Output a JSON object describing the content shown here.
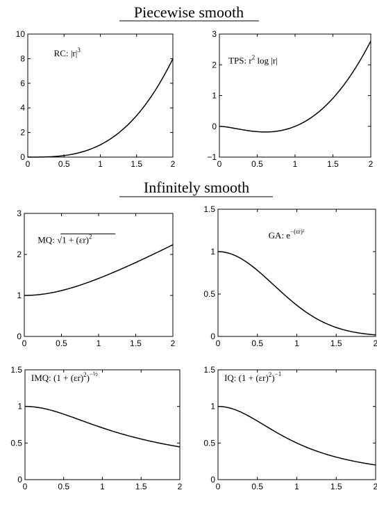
{
  "sections": [
    {
      "title": "Piecewise smooth"
    },
    {
      "title": "Infinitely smooth"
    }
  ],
  "chart_data": [
    {
      "id": "rc",
      "type": "line",
      "function": "abs(r)^3",
      "annotation": {
        "prefix": "RC: ",
        "formula": "|r|",
        "sup": "3"
      },
      "xlim": [
        0,
        2
      ],
      "ylim": [
        0,
        10
      ],
      "xticks": [
        "0",
        "0.5",
        "1",
        "1.5",
        "2"
      ],
      "yticks": [
        "0",
        "2",
        "4",
        "6",
        "8",
        "10"
      ],
      "x": [
        0,
        0.5,
        1,
        1.5,
        2
      ],
      "y": [
        0,
        0.125,
        1,
        3.375,
        8
      ]
    },
    {
      "id": "tps",
      "type": "line",
      "function": "r^2 log|r|",
      "annotation": {
        "prefix": "TPS: ",
        "formula": "r",
        "sup": "2",
        "suffix": " log |r|"
      },
      "xlim": [
        0,
        2
      ],
      "ylim": [
        -1,
        3
      ],
      "xticks": [
        "0",
        "0.5",
        "1",
        "1.5",
        "2"
      ],
      "yticks": [
        "−1",
        "0",
        "1",
        "2",
        "3"
      ],
      "x": [
        0,
        0.5,
        0.61,
        1,
        1.5,
        2
      ],
      "y": [
        0,
        -0.173,
        -0.184,
        0,
        0.912,
        2.773
      ]
    },
    {
      "id": "mq",
      "type": "line",
      "function": "sqrt(1+(eps r)^2)",
      "annotation": {
        "prefix": "MQ: ",
        "formula": "√",
        "radicand": "1 + (εr)",
        "sup": "2"
      },
      "xlim": [
        0,
        2
      ],
      "ylim": [
        0,
        3
      ],
      "xticks": [
        "0",
        "0.5",
        "1",
        "1.5",
        "2"
      ],
      "yticks": [
        "0",
        "1",
        "2",
        "3"
      ],
      "x": [
        0,
        0.5,
        1,
        1.5,
        2
      ],
      "y": [
        1,
        1.118,
        1.414,
        1.803,
        2.236
      ]
    },
    {
      "id": "ga",
      "type": "line",
      "function": "exp(-(eps r)^2)",
      "annotation": {
        "prefix": "GA: ",
        "formula": "e",
        "sup": "−(εr)²"
      },
      "xlim": [
        0,
        2
      ],
      "ylim": [
        0,
        1.5
      ],
      "xticks": [
        "0",
        "0.5",
        "1",
        "1.5",
        "2"
      ],
      "yticks": [
        "0",
        "0.5",
        "1",
        "1.5"
      ],
      "x": [
        0,
        0.5,
        1,
        1.5,
        2
      ],
      "y": [
        1,
        0.779,
        0.368,
        0.105,
        0.018
      ]
    },
    {
      "id": "imq",
      "type": "line",
      "function": "(1+(eps r)^2)^(-1/2)",
      "annotation": {
        "prefix": "IMQ: ",
        "formula": "(1 + (εr)",
        "sup1": "2",
        "close": ")",
        "sup": "−½"
      },
      "xlim": [
        0,
        2
      ],
      "ylim": [
        0,
        1.5
      ],
      "xticks": [
        "0",
        "0.5",
        "1",
        "1.5",
        "2"
      ],
      "yticks": [
        "0",
        "0.5",
        "1",
        "1.5"
      ],
      "x": [
        0,
        0.5,
        1,
        1.5,
        2
      ],
      "y": [
        1,
        0.894,
        0.707,
        0.555,
        0.447
      ]
    },
    {
      "id": "iq",
      "type": "line",
      "function": "(1+(eps r)^2)^(-1)",
      "annotation": {
        "prefix": "IQ: ",
        "formula": "(1 + (εr)",
        "sup1": "2",
        "close": ")",
        "sup": "−1"
      },
      "xlim": [
        0,
        2
      ],
      "ylim": [
        0,
        1.5
      ],
      "xticks": [
        "0",
        "0.5",
        "1",
        "1.5",
        "2"
      ],
      "yticks": [
        "0",
        "0.5",
        "1",
        "1.5"
      ],
      "x": [
        0,
        0.5,
        1,
        1.5,
        2
      ],
      "y": [
        1,
        0.8,
        0.5,
        0.308,
        0.2
      ]
    }
  ]
}
